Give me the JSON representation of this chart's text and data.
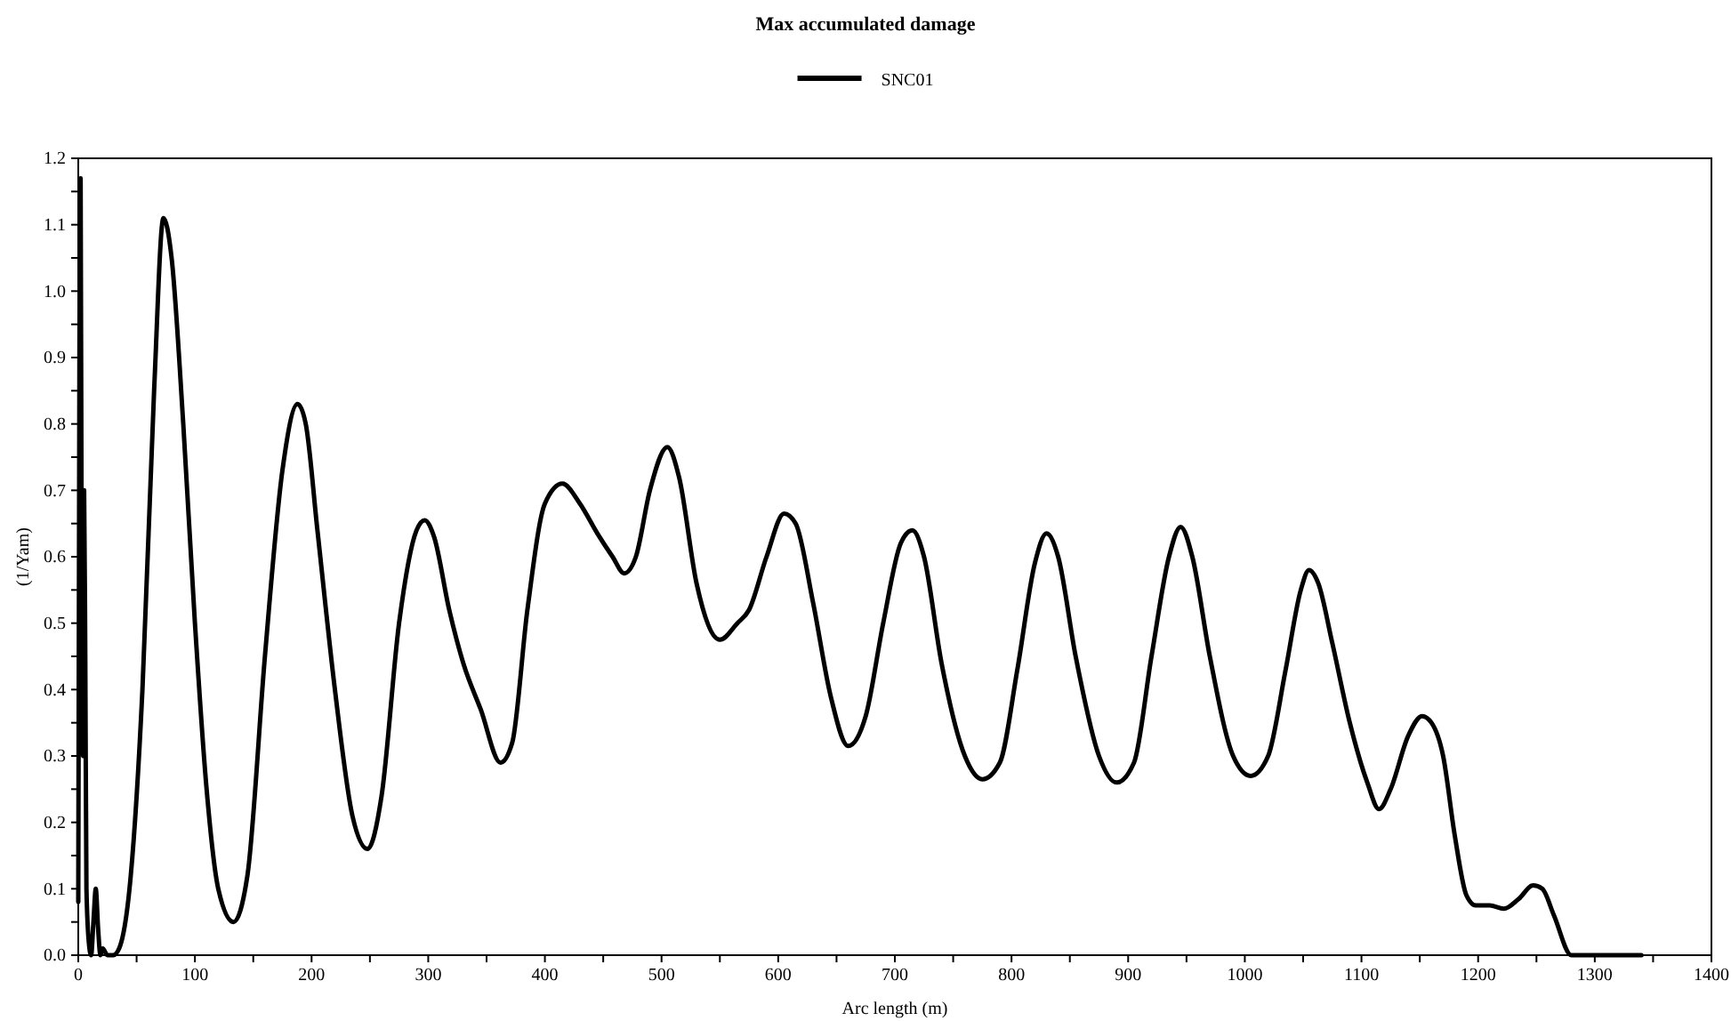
{
  "chart_data": {
    "type": "line",
    "title": "Max accumulated damage",
    "xlabel": "Arc length (m)",
    "ylabel": "(1/Yam)",
    "legend": "top",
    "marker": "none",
    "line_style": "solid",
    "grid": false,
    "xlim": [
      0,
      1400
    ],
    "ylim": [
      0,
      1.2
    ],
    "xticks": [
      0,
      {
        "value": 50,
        "label": null
      },
      100,
      {
        "value": 150,
        "label": null
      },
      200,
      {
        "value": 250,
        "label": null
      },
      300,
      {
        "value": 350,
        "label": null
      },
      400,
      {
        "value": 450,
        "label": null
      },
      500,
      {
        "value": 550,
        "label": null
      },
      600,
      {
        "value": 650,
        "label": null
      },
      700,
      {
        "value": 750,
        "label": null
      },
      800,
      {
        "value": 850,
        "label": null
      },
      900,
      {
        "value": 950,
        "label": null
      },
      1000,
      {
        "value": 1050,
        "label": null
      },
      1100,
      {
        "value": 1150,
        "label": null
      },
      1200,
      {
        "value": 1250,
        "label": null
      },
      1300,
      {
        "value": 1350,
        "label": null
      },
      1400
    ],
    "yticks": [
      {
        "value": 0,
        "label": "0.0"
      },
      {
        "value": 0.05,
        "label": null
      },
      0.1,
      {
        "value": 0.15,
        "label": null
      },
      0.2,
      {
        "value": 0.25,
        "label": null
      },
      0.3,
      {
        "value": 0.35,
        "label": null
      },
      0.4,
      {
        "value": 0.45,
        "label": null
      },
      0.5,
      {
        "value": 0.55,
        "label": null
      },
      0.6,
      {
        "value": 0.65,
        "label": null
      },
      0.7,
      {
        "value": 0.75,
        "label": null
      },
      0.8,
      {
        "value": 0.85,
        "label": null
      },
      0.9,
      {
        "value": 0.95,
        "label": null
      },
      {
        "value": 1,
        "label": "1.0"
      },
      {
        "value": 1.05,
        "label": null
      },
      1.1,
      {
        "value": 1.15,
        "label": null
      },
      1.2
    ],
    "series": [
      {
        "name": "SNC01",
        "color": "#000000",
        "x": [
          0,
          1,
          2,
          3,
          4,
          5,
          6,
          7,
          9,
          11,
          13,
          15,
          17,
          19,
          21,
          25,
          30,
          35,
          45,
          55,
          65,
          73,
          80,
          90,
          100,
          110,
          120,
          133,
          145,
          160,
          175,
          188,
          195,
          205,
          220,
          235,
          248,
          260,
          275,
          290,
          297,
          305,
          318,
          330,
          345,
          362,
          372,
          385,
          400,
          415,
          430,
          445,
          458,
          468,
          478,
          490,
          505,
          515,
          530,
          550,
          565,
          575,
          590,
          605,
          615,
          630,
          645,
          660,
          675,
          690,
          705,
          715,
          725,
          740,
          760,
          775,
          790,
          805,
          820,
          830,
          840,
          855,
          875,
          890,
          905,
          920,
          935,
          945,
          955,
          970,
          990,
          1005,
          1020,
          1035,
          1048,
          1055,
          1063,
          1075,
          1090,
          1105,
          1115,
          1125,
          1140,
          1152,
          1160,
          1170,
          1180,
          1190,
          1198,
          1210,
          1222,
          1235,
          1247,
          1255,
          1265,
          1280,
          1300,
          1320,
          1340
        ],
        "values": [
          0.08,
          0.9,
          1.17,
          0.5,
          0.3,
          0.7,
          0.45,
          0.1,
          0.02,
          0.0,
          0.05,
          0.1,
          0.04,
          0.0,
          0.01,
          0.0,
          0.0,
          0.01,
          0.12,
          0.4,
          0.85,
          1.11,
          1.05,
          0.8,
          0.5,
          0.25,
          0.1,
          0.05,
          0.12,
          0.45,
          0.73,
          0.83,
          0.8,
          0.64,
          0.4,
          0.21,
          0.16,
          0.24,
          0.5,
          0.64,
          0.655,
          0.63,
          0.52,
          0.44,
          0.37,
          0.29,
          0.32,
          0.52,
          0.68,
          0.71,
          0.68,
          0.635,
          0.6,
          0.575,
          0.6,
          0.7,
          0.765,
          0.72,
          0.56,
          0.475,
          0.5,
          0.52,
          0.6,
          0.665,
          0.65,
          0.53,
          0.39,
          0.315,
          0.36,
          0.5,
          0.62,
          0.64,
          0.6,
          0.44,
          0.3,
          0.265,
          0.29,
          0.43,
          0.59,
          0.635,
          0.6,
          0.45,
          0.3,
          0.26,
          0.29,
          0.45,
          0.6,
          0.645,
          0.6,
          0.45,
          0.3,
          0.27,
          0.3,
          0.43,
          0.55,
          0.58,
          0.56,
          0.47,
          0.35,
          0.26,
          0.22,
          0.25,
          0.33,
          0.36,
          0.35,
          0.3,
          0.18,
          0.09,
          0.075,
          0.075,
          0.07,
          0.085,
          0.105,
          0.1,
          0.06,
          0.0,
          0.0,
          0.0,
          0.0
        ]
      }
    ]
  }
}
